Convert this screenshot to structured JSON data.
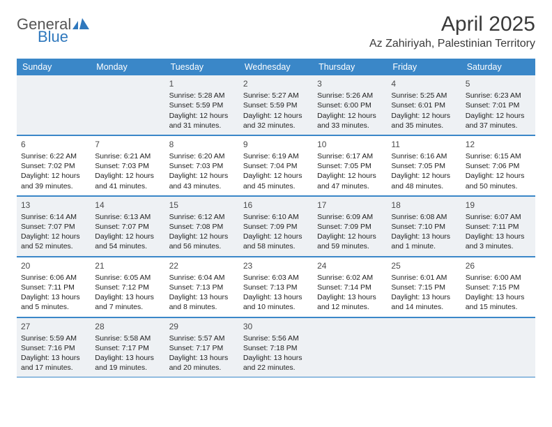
{
  "logo": {
    "text1": "General",
    "text2": "Blue",
    "color_gray": "#6a6a6a",
    "color_blue": "#2f78bd"
  },
  "title": "April 2025",
  "location": "Az Zahiriyah, Palestinian Territory",
  "colors": {
    "header_bg": "#3a87c8",
    "header_text": "#ffffff",
    "row_border": "#3a87c8",
    "row_shade": "#eef1f4",
    "text": "#222222"
  },
  "day_headers": [
    "Sunday",
    "Monday",
    "Tuesday",
    "Wednesday",
    "Thursday",
    "Friday",
    "Saturday"
  ],
  "weeks": [
    [
      null,
      null,
      {
        "n": "1",
        "sr": "5:28 AM",
        "ss": "5:59 PM",
        "dl": "12 hours and 31 minutes."
      },
      {
        "n": "2",
        "sr": "5:27 AM",
        "ss": "5:59 PM",
        "dl": "12 hours and 32 minutes."
      },
      {
        "n": "3",
        "sr": "5:26 AM",
        "ss": "6:00 PM",
        "dl": "12 hours and 33 minutes."
      },
      {
        "n": "4",
        "sr": "5:25 AM",
        "ss": "6:01 PM",
        "dl": "12 hours and 35 minutes."
      },
      {
        "n": "5",
        "sr": "6:23 AM",
        "ss": "7:01 PM",
        "dl": "12 hours and 37 minutes."
      }
    ],
    [
      {
        "n": "6",
        "sr": "6:22 AM",
        "ss": "7:02 PM",
        "dl": "12 hours and 39 minutes."
      },
      {
        "n": "7",
        "sr": "6:21 AM",
        "ss": "7:03 PM",
        "dl": "12 hours and 41 minutes."
      },
      {
        "n": "8",
        "sr": "6:20 AM",
        "ss": "7:03 PM",
        "dl": "12 hours and 43 minutes."
      },
      {
        "n": "9",
        "sr": "6:19 AM",
        "ss": "7:04 PM",
        "dl": "12 hours and 45 minutes."
      },
      {
        "n": "10",
        "sr": "6:17 AM",
        "ss": "7:05 PM",
        "dl": "12 hours and 47 minutes."
      },
      {
        "n": "11",
        "sr": "6:16 AM",
        "ss": "7:05 PM",
        "dl": "12 hours and 48 minutes."
      },
      {
        "n": "12",
        "sr": "6:15 AM",
        "ss": "7:06 PM",
        "dl": "12 hours and 50 minutes."
      }
    ],
    [
      {
        "n": "13",
        "sr": "6:14 AM",
        "ss": "7:07 PM",
        "dl": "12 hours and 52 minutes."
      },
      {
        "n": "14",
        "sr": "6:13 AM",
        "ss": "7:07 PM",
        "dl": "12 hours and 54 minutes."
      },
      {
        "n": "15",
        "sr": "6:12 AM",
        "ss": "7:08 PM",
        "dl": "12 hours and 56 minutes."
      },
      {
        "n": "16",
        "sr": "6:10 AM",
        "ss": "7:09 PM",
        "dl": "12 hours and 58 minutes."
      },
      {
        "n": "17",
        "sr": "6:09 AM",
        "ss": "7:09 PM",
        "dl": "12 hours and 59 minutes."
      },
      {
        "n": "18",
        "sr": "6:08 AM",
        "ss": "7:10 PM",
        "dl": "13 hours and 1 minute."
      },
      {
        "n": "19",
        "sr": "6:07 AM",
        "ss": "7:11 PM",
        "dl": "13 hours and 3 minutes."
      }
    ],
    [
      {
        "n": "20",
        "sr": "6:06 AM",
        "ss": "7:11 PM",
        "dl": "13 hours and 5 minutes."
      },
      {
        "n": "21",
        "sr": "6:05 AM",
        "ss": "7:12 PM",
        "dl": "13 hours and 7 minutes."
      },
      {
        "n": "22",
        "sr": "6:04 AM",
        "ss": "7:13 PM",
        "dl": "13 hours and 8 minutes."
      },
      {
        "n": "23",
        "sr": "6:03 AM",
        "ss": "7:13 PM",
        "dl": "13 hours and 10 minutes."
      },
      {
        "n": "24",
        "sr": "6:02 AM",
        "ss": "7:14 PM",
        "dl": "13 hours and 12 minutes."
      },
      {
        "n": "25",
        "sr": "6:01 AM",
        "ss": "7:15 PM",
        "dl": "13 hours and 14 minutes."
      },
      {
        "n": "26",
        "sr": "6:00 AM",
        "ss": "7:15 PM",
        "dl": "13 hours and 15 minutes."
      }
    ],
    [
      {
        "n": "27",
        "sr": "5:59 AM",
        "ss": "7:16 PM",
        "dl": "13 hours and 17 minutes."
      },
      {
        "n": "28",
        "sr": "5:58 AM",
        "ss": "7:17 PM",
        "dl": "13 hours and 19 minutes."
      },
      {
        "n": "29",
        "sr": "5:57 AM",
        "ss": "7:17 PM",
        "dl": "13 hours and 20 minutes."
      },
      {
        "n": "30",
        "sr": "5:56 AM",
        "ss": "7:18 PM",
        "dl": "13 hours and 22 minutes."
      },
      null,
      null,
      null
    ]
  ],
  "labels": {
    "sunrise": "Sunrise:",
    "sunset": "Sunset:",
    "daylight": "Daylight:"
  }
}
